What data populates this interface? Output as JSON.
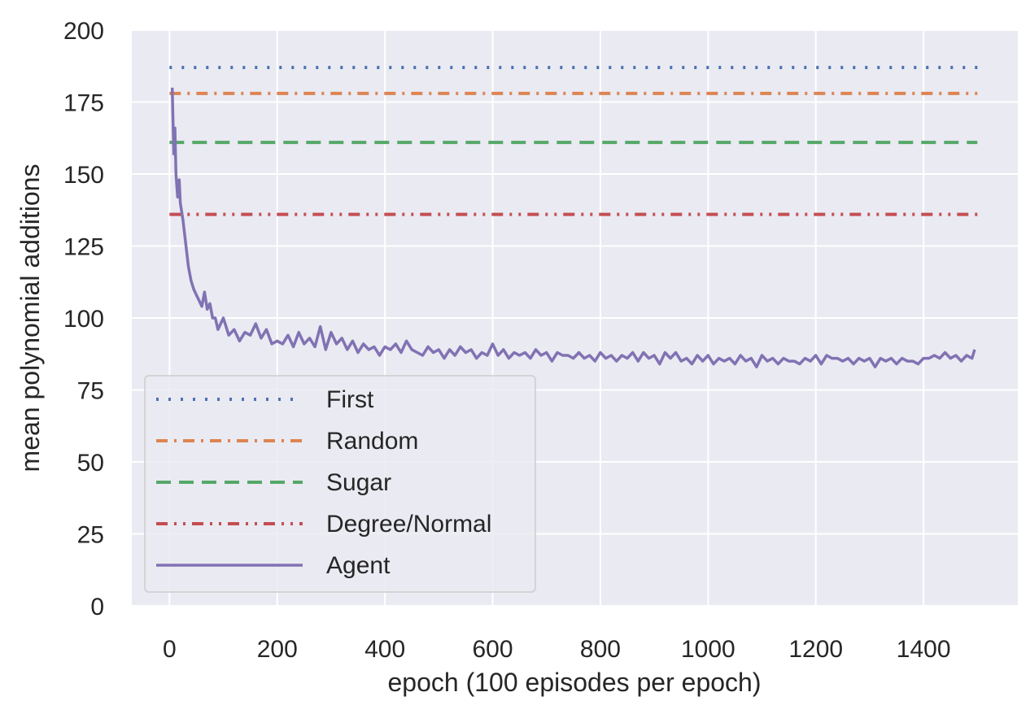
{
  "chart_data": {
    "type": "line",
    "title": "",
    "xlabel": "epoch (100 episodes per epoch)",
    "ylabel": "mean polynomial additions",
    "xlim": [
      -70,
      1575
    ],
    "ylim": [
      0,
      200
    ],
    "xticks": [
      0,
      200,
      400,
      600,
      800,
      1000,
      1200,
      1400
    ],
    "yticks": [
      0,
      25,
      50,
      75,
      100,
      125,
      150,
      175,
      200
    ],
    "grid": true,
    "legend_position": "lower-left",
    "series": [
      {
        "name": "First",
        "style": "dotted",
        "color": "#4c72b0",
        "x": [
          0,
          1500
        ],
        "y": [
          187,
          187
        ]
      },
      {
        "name": "Random",
        "style": "dashdot",
        "color": "#dd8452",
        "x": [
          0,
          1500
        ],
        "y": [
          178,
          178
        ]
      },
      {
        "name": "Sugar",
        "style": "dashed",
        "color": "#55a868",
        "x": [
          0,
          1500
        ],
        "y": [
          161,
          161
        ]
      },
      {
        "name": "Degree/Normal",
        "style": "dashdotdot",
        "color": "#c44e52",
        "x": [
          0,
          1500
        ],
        "y": [
          136,
          136
        ]
      },
      {
        "name": "Agent",
        "style": "solid",
        "color": "#8172b3",
        "x": [
          5,
          8,
          10,
          12,
          15,
          18,
          20,
          25,
          30,
          35,
          40,
          45,
          50,
          55,
          60,
          65,
          70,
          75,
          80,
          85,
          90,
          95,
          100,
          110,
          120,
          130,
          140,
          150,
          160,
          170,
          180,
          190,
          200,
          210,
          220,
          230,
          240,
          250,
          260,
          270,
          280,
          290,
          300,
          310,
          320,
          330,
          340,
          350,
          360,
          370,
          380,
          390,
          400,
          410,
          420,
          430,
          440,
          450,
          460,
          470,
          480,
          490,
          500,
          510,
          520,
          530,
          540,
          550,
          560,
          570,
          580,
          590,
          600,
          610,
          620,
          630,
          640,
          650,
          660,
          670,
          680,
          690,
          700,
          710,
          720,
          730,
          740,
          750,
          760,
          770,
          780,
          790,
          800,
          810,
          820,
          830,
          840,
          850,
          860,
          870,
          880,
          890,
          900,
          910,
          920,
          930,
          940,
          950,
          960,
          970,
          980,
          990,
          1000,
          1010,
          1020,
          1030,
          1040,
          1050,
          1060,
          1070,
          1080,
          1090,
          1100,
          1110,
          1120,
          1130,
          1140,
          1150,
          1160,
          1170,
          1180,
          1190,
          1200,
          1210,
          1220,
          1230,
          1240,
          1250,
          1260,
          1270,
          1280,
          1290,
          1300,
          1310,
          1320,
          1330,
          1340,
          1350,
          1360,
          1370,
          1380,
          1390,
          1400,
          1410,
          1420,
          1430,
          1440,
          1450,
          1460,
          1470,
          1480,
          1490,
          1495
        ],
        "y": [
          180,
          157,
          166,
          150,
          142,
          148,
          140,
          134,
          126,
          118,
          113,
          110,
          108,
          106,
          104,
          109,
          103,
          105,
          100,
          100,
          96,
          98,
          100,
          94,
          96,
          92,
          95,
          94,
          98,
          93,
          96,
          91,
          92,
          91,
          94,
          90,
          95,
          91,
          93,
          90,
          97,
          89,
          95,
          91,
          93,
          89,
          92,
          88,
          91,
          89,
          90,
          87,
          90,
          89,
          91,
          88,
          92,
          89,
          88,
          87,
          90,
          88,
          89,
          86,
          89,
          87,
          90,
          88,
          89,
          86,
          88,
          87,
          91,
          87,
          89,
          86,
          88,
          87,
          88,
          86,
          89,
          87,
          88,
          85,
          88,
          87,
          87,
          86,
          88,
          86,
          87,
          85,
          88,
          86,
          87,
          85,
          87,
          86,
          88,
          85,
          88,
          86,
          87,
          84,
          88,
          86,
          88,
          85,
          86,
          84,
          87,
          85,
          87,
          84,
          86,
          85,
          86,
          84,
          87,
          85,
          86,
          83,
          87,
          85,
          86,
          84,
          86,
          85,
          85,
          84,
          86,
          85,
          87,
          84,
          87,
          86,
          86,
          85,
          86,
          84,
          86,
          85,
          86,
          83,
          86,
          85,
          86,
          84,
          86,
          85,
          85,
          84,
          86,
          86,
          87,
          86,
          88,
          86,
          87,
          85,
          87,
          86,
          89
        ]
      }
    ]
  }
}
